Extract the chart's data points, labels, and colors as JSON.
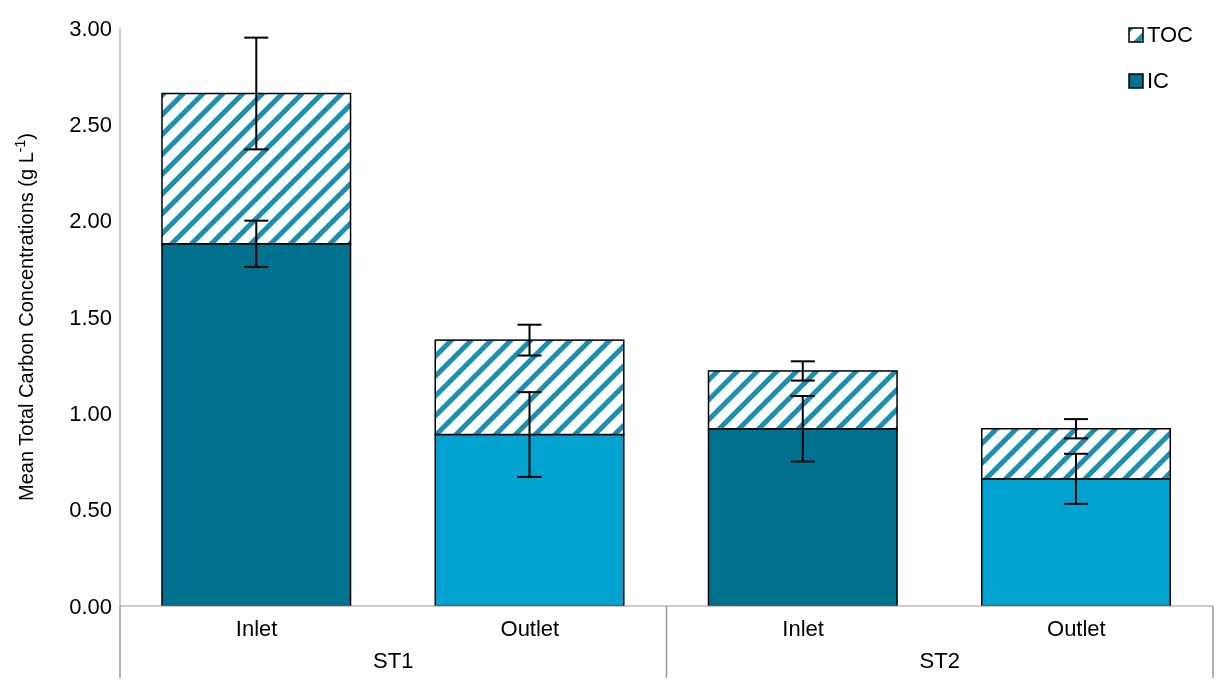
{
  "chart_data": {
    "type": "bar",
    "stacked": true,
    "ylabel": "Mean Total Carbon Concentrations (g L$^{-1}$)",
    "categories": [
      "Inlet",
      "Outlet",
      "Inlet",
      "Outlet"
    ],
    "annotations": [
      "ST1",
      "ST2"
    ],
    "series": [
      {
        "name": "IC",
        "color": "#00718f",
        "colors": [
          "#00718f",
          "#00a2cf",
          "#00718f",
          "#00a2cf"
        ],
        "values": [
          1.88,
          0.89,
          0.92,
          0.66
        ],
        "errors": [
          0.12,
          0.22,
          0.17,
          0.13
        ]
      },
      {
        "name": "TOC",
        "color": "#1a8fb0",
        "values": [
          0.78,
          0.49,
          0.3,
          0.26
        ],
        "errors": [
          0.29,
          0.08,
          0.05,
          0.05
        ]
      }
    ],
    "ylim": [
      0,
      3
    ],
    "yticks": [
      {
        "value": 0,
        "label": "0.00"
      },
      {
        "value": 0.5,
        "label": "0.50"
      },
      {
        "value": 1,
        "label": "1.00"
      },
      {
        "value": 1.5,
        "label": "1.50"
      },
      {
        "value": 2,
        "label": "2.00"
      },
      {
        "value": 2.5,
        "label": "2.50"
      },
      {
        "value": 3,
        "label": "3.00"
      }
    ],
    "grid": false,
    "legend": "top right"
  }
}
